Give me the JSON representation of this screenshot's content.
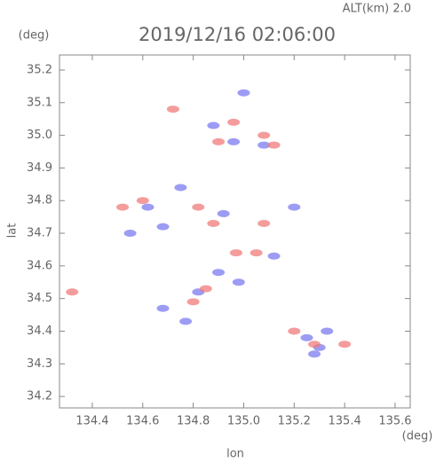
{
  "chart_data": {
    "type": "scatter",
    "title": "2019/12/16 02:06:00",
    "subtitle": "ALT(km) 2.0",
    "y_unit": "(deg)",
    "x_unit": "(deg)",
    "xlabel": "lon",
    "ylabel": "lat",
    "xlim": [
      134.27,
      135.66
    ],
    "ylim": [
      34.165,
      35.246
    ],
    "xticks": [
      134.4,
      134.6,
      134.8,
      {
        "value": 135,
        "label": "135.0"
      },
      135.2,
      135.4,
      135.6
    ],
    "yticks": [
      34.2,
      34.3,
      34.4,
      34.5,
      34.6,
      34.7,
      34.8,
      34.9,
      {
        "value": 35,
        "label": "35.0"
      },
      35.1,
      35.2
    ],
    "series": [
      {
        "color": "#7b7bf0",
        "x": [
          135.0,
          134.88,
          134.96,
          135.08,
          134.75,
          134.62,
          134.68,
          134.92,
          135.2,
          135.12,
          134.9,
          134.98,
          134.82,
          135.3,
          135.28,
          135.25,
          135.33,
          134.68,
          134.77,
          134.55
        ],
        "values": [
          35.13,
          35.03,
          34.98,
          34.97,
          34.84,
          34.78,
          34.72,
          34.76,
          34.78,
          34.63,
          34.58,
          34.55,
          34.52,
          34.35,
          34.33,
          34.38,
          34.4,
          34.47,
          34.43,
          34.7
        ]
      },
      {
        "color": "#f07b7b",
        "x": [
          134.32,
          134.72,
          134.96,
          135.08,
          134.9,
          134.52,
          134.6,
          134.82,
          134.88,
          135.08,
          135.05,
          134.97,
          134.8,
          134.85,
          135.2,
          135.28,
          135.4,
          135.12
        ],
        "values": [
          34.52,
          35.08,
          35.04,
          35.0,
          34.98,
          34.78,
          34.8,
          34.78,
          34.73,
          34.73,
          34.64,
          34.64,
          34.49,
          34.53,
          34.4,
          34.36,
          34.36,
          34.97
        ]
      }
    ]
  }
}
